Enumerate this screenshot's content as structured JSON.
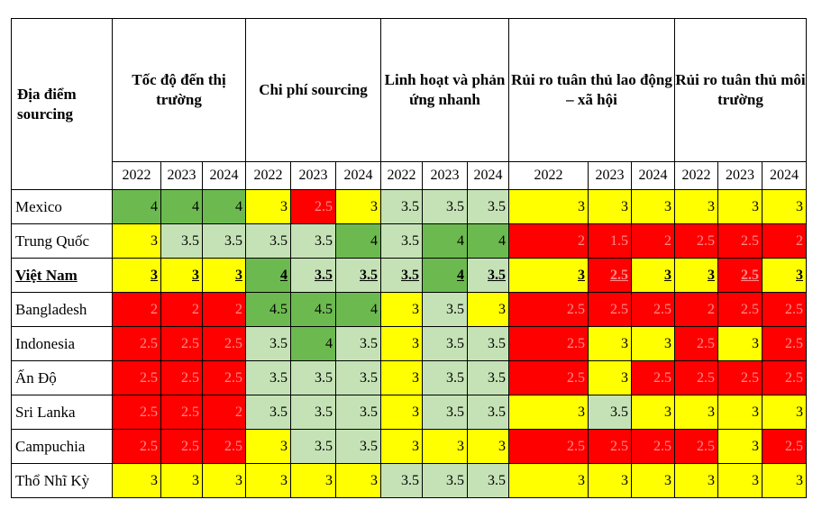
{
  "table": {
    "location_header": "Địa điểm sourcing",
    "groups": [
      "Tốc độ đến thị trường",
      "Chi phí sourcing",
      "Linh hoạt và phản ứng nhanh",
      "Rủi ro tuân thủ lao động – xã hội",
      "Rủi ro tuân thủ môi trường"
    ],
    "years": [
      "2022",
      "2023",
      "2024"
    ],
    "colors": {
      "dark_green": "#6cba4f",
      "light_green": "#c5e2b6",
      "yellow": "#ffff00",
      "red": "#ff0000"
    },
    "rows": [
      {
        "name": "Mexico",
        "values": [
          "4",
          "4",
          "4",
          "3",
          "2.5",
          "3",
          "3.5",
          "3.5",
          "3.5",
          "3",
          "3",
          "3",
          "3",
          "3",
          "3"
        ],
        "colors": [
          "dg",
          "dg",
          "dg",
          "y",
          "r",
          "y",
          "lg",
          "lg",
          "lg",
          "y",
          "y",
          "y",
          "y",
          "y",
          "y"
        ]
      },
      {
        "name": "Trung Quốc",
        "values": [
          "3",
          "3.5",
          "3.5",
          "3.5",
          "3.5",
          "4",
          "3.5",
          "4",
          "4",
          "2",
          "1.5",
          "2",
          "2.5",
          "2.5",
          "2"
        ],
        "colors": [
          "y",
          "lg",
          "lg",
          "lg",
          "lg",
          "dg",
          "lg",
          "dg",
          "dg",
          "r",
          "r",
          "r",
          "r",
          "r",
          "r"
        ]
      },
      {
        "name": "Việt Nam",
        "values": [
          "3",
          "3",
          "3",
          "4",
          "3.5",
          "3.5",
          "3.5",
          "4",
          "3.5",
          "3",
          "2.5",
          "3",
          "3",
          "2.5",
          "3"
        ],
        "colors": [
          "y",
          "y",
          "y",
          "dg",
          "lg",
          "lg",
          "lg",
          "dg",
          "lg",
          "y",
          "r",
          "y",
          "y",
          "r",
          "y"
        ]
      },
      {
        "name": "Bangladesh",
        "values": [
          "2",
          "2",
          "2",
          "4.5",
          "4.5",
          "4",
          "3",
          "3.5",
          "3",
          "2.5",
          "2.5",
          "2.5",
          "2",
          "2.5",
          "2.5"
        ],
        "colors": [
          "r",
          "r",
          "r",
          "dg",
          "dg",
          "dg",
          "y",
          "lg",
          "y",
          "r",
          "r",
          "r",
          "r",
          "r",
          "r"
        ]
      },
      {
        "name": "Indonesia",
        "values": [
          "2.5",
          "2.5",
          "2.5",
          "3.5",
          "4",
          "3.5",
          "3",
          "3.5",
          "3.5",
          "2.5",
          "3",
          "3",
          "2.5",
          "3",
          "2.5"
        ],
        "colors": [
          "r",
          "r",
          "r",
          "lg",
          "dg",
          "lg",
          "y",
          "lg",
          "lg",
          "r",
          "y",
          "y",
          "r",
          "y",
          "r"
        ]
      },
      {
        "name": "Ấn Độ",
        "values": [
          "2.5",
          "2.5",
          "2.5",
          "3.5",
          "3.5",
          "3.5",
          "3",
          "3.5",
          "3.5",
          "2.5",
          "3",
          "2.5",
          "2.5",
          "2.5",
          "2.5"
        ],
        "colors": [
          "r",
          "r",
          "r",
          "lg",
          "lg",
          "lg",
          "y",
          "lg",
          "lg",
          "r",
          "y",
          "r",
          "r",
          "r",
          "r"
        ]
      },
      {
        "name": "Sri Lanka",
        "values": [
          "2.5",
          "2.5",
          "2",
          "3.5",
          "3.5",
          "3.5",
          "3",
          "3.5",
          "3.5",
          "3",
          "3.5",
          "3",
          "3",
          "3",
          "3"
        ],
        "colors": [
          "r",
          "r",
          "r",
          "lg",
          "lg",
          "lg",
          "y",
          "lg",
          "lg",
          "y",
          "lg",
          "y",
          "y",
          "y",
          "y"
        ]
      },
      {
        "name": "Campuchia",
        "values": [
          "2.5",
          "2.5",
          "2.5",
          "3",
          "3.5",
          "3.5",
          "3",
          "3",
          "3",
          "2.5",
          "2.5",
          "2.5",
          "2.5",
          "3",
          "2.5"
        ],
        "colors": [
          "r",
          "r",
          "r",
          "y",
          "lg",
          "lg",
          "y",
          "y",
          "y",
          "r",
          "r",
          "r",
          "r",
          "y",
          "r"
        ]
      },
      {
        "name": "Thổ Nhĩ Kỳ",
        "values": [
          "3",
          "3",
          "3",
          "3",
          "3",
          "3",
          "3.5",
          "3.5",
          "3.5",
          "3",
          "3",
          "3",
          "3",
          "3",
          "3"
        ],
        "colors": [
          "y",
          "y",
          "y",
          "y",
          "y",
          "y",
          "lg",
          "lg",
          "lg",
          "y",
          "y",
          "y",
          "y",
          "y",
          "y"
        ]
      }
    ]
  }
}
